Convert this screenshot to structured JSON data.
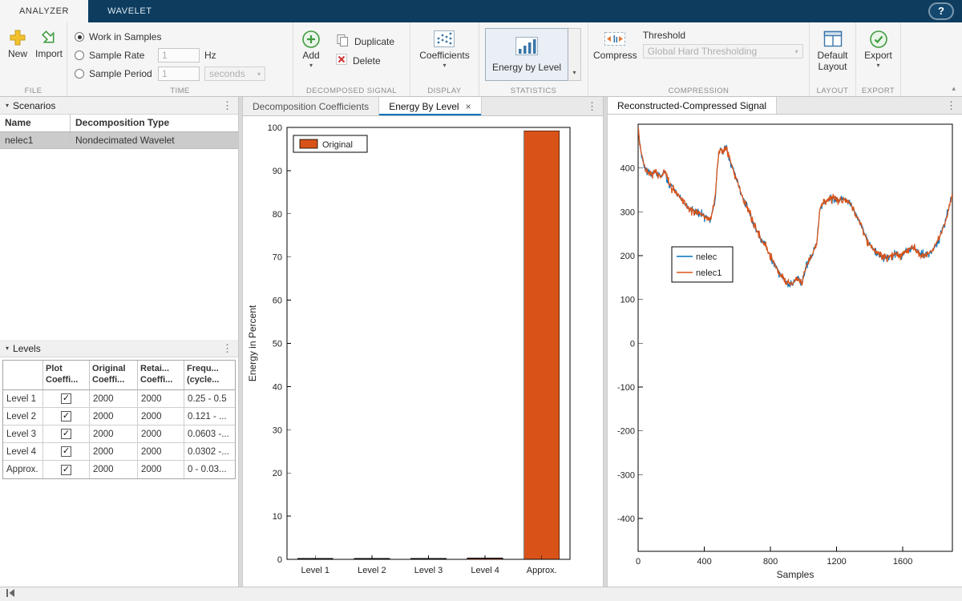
{
  "app": {
    "tabs": [
      {
        "label": "ANALYZER"
      },
      {
        "label": "WAVELET"
      }
    ],
    "help": "?"
  },
  "icons": {
    "menu": "⋮",
    "caret_down": "▾",
    "dropdown": "▾",
    "collapse": "▴",
    "check": "✓"
  },
  "toolstrip": {
    "file": {
      "label": "FILE",
      "new": "New",
      "import": "Import"
    },
    "time": {
      "label": "TIME",
      "work_in_samples": "Work in Samples",
      "sample_rate": "Sample Rate",
      "sample_rate_value": "1",
      "hz": "Hz",
      "sample_period": "Sample Period",
      "sample_period_value": "1",
      "seconds": "seconds"
    },
    "decomposed": {
      "label": "DECOMPOSED SIGNAL",
      "add": "Add",
      "duplicate": "Duplicate",
      "delete": "Delete"
    },
    "display": {
      "label": "DISPLAY",
      "coefficients": "Coefficients"
    },
    "statistics": {
      "label": "STATISTICS",
      "energy_by_level": "Energy by Level"
    },
    "compression": {
      "label": "COMPRESSION",
      "compress": "Compress",
      "threshold": "Threshold",
      "threshold_value": "Global Hard Thresholding"
    },
    "layout": {
      "label": "LAYOUT",
      "default_layout": "Default Layout"
    },
    "export": {
      "label": "EXPORT",
      "export": "Export"
    }
  },
  "scenarios": {
    "title": "Scenarios",
    "columns": [
      "Name",
      "Decomposition Type"
    ],
    "rows": [
      {
        "name": "nelec1",
        "type": "Nondecimated Wavelet",
        "selected": true
      }
    ]
  },
  "levels": {
    "title": "Levels",
    "columns": [
      "",
      "Plot\nCoeffi...",
      "Original\nCoeffi...",
      "Retai...\nCoeffi...",
      "Frequ...\n(cycle..."
    ],
    "rows": [
      {
        "label": "Level 1",
        "plot": true,
        "original": "2000",
        "retained": "2000",
        "freq": "0.25 - 0.5"
      },
      {
        "label": "Level 2",
        "plot": true,
        "original": "2000",
        "retained": "2000",
        "freq": "0.121 - ..."
      },
      {
        "label": "Level 3",
        "plot": true,
        "original": "2000",
        "retained": "2000",
        "freq": "0.0603 -..."
      },
      {
        "label": "Level 4",
        "plot": true,
        "original": "2000",
        "retained": "2000",
        "freq": "0.0302 -..."
      },
      {
        "label": "Approx.",
        "plot": true,
        "original": "2000",
        "retained": "2000",
        "freq": "0 - 0.03..."
      }
    ]
  },
  "center": {
    "tabs": [
      "Decomposition Coefficients",
      "Energy By Level"
    ],
    "active_tab": 1,
    "close": "×"
  },
  "right": {
    "title": "Reconstructed-Compressed Signal"
  },
  "colors": {
    "orange": "#d95319",
    "blue": "#0072bd",
    "accent": "#0072bd"
  },
  "chart_data": [
    {
      "type": "bar",
      "title": "Energy By Level",
      "categories": [
        "Level 1",
        "Level 2",
        "Level 3",
        "Level 4",
        "Approx."
      ],
      "values": [
        0.12,
        0.15,
        0.2,
        0.3,
        99.23
      ],
      "xlabel": "",
      "ylabel": "Energy in Percent",
      "ylim": [
        0,
        100
      ],
      "yticks": [
        0,
        10,
        20,
        30,
        40,
        50,
        60,
        70,
        80,
        90,
        100
      ],
      "bar_color": "#d95319",
      "grid": false,
      "legend": [
        {
          "label": "Original",
          "color": "#d95319"
        }
      ],
      "legend_position": "top-left"
    },
    {
      "type": "line",
      "title": "Reconstructed-Compressed Signal",
      "xlabel": "Samples",
      "ylabel": "",
      "xlim": [
        0,
        1900
      ],
      "ylim": [
        -475,
        500
      ],
      "xticks": [
        0,
        400,
        800,
        1200,
        1600
      ],
      "yticks": [
        -400,
        -300,
        -200,
        -100,
        0,
        100,
        200,
        300,
        400
      ],
      "grid": false,
      "legend_position": "left-center",
      "series": [
        {
          "name": "nelec",
          "color": "#0072bd",
          "width": 1.0
        },
        {
          "name": "nelec1",
          "color": "#d95319",
          "width": 1.3
        }
      ],
      "keypoints": {
        "x": [
          0,
          15,
          40,
          70,
          100,
          140,
          160,
          190,
          220,
          260,
          300,
          340,
          380,
          420,
          440,
          465,
          485,
          500,
          515,
          530,
          550,
          575,
          600,
          625,
          660,
          700,
          740,
          780,
          820,
          860,
          900,
          930,
          960,
          990,
          1020,
          1050,
          1080,
          1100,
          1130,
          1170,
          1210,
          1250,
          1290,
          1320,
          1350,
          1390,
          1430,
          1470,
          1510,
          1550,
          1590,
          1630,
          1660,
          1700,
          1740,
          1780,
          1820,
          1860,
          1900
        ],
        "y": [
          490,
          440,
          400,
          385,
          390,
          380,
          395,
          360,
          350,
          330,
          310,
          300,
          295,
          285,
          285,
          330,
          430,
          445,
          435,
          450,
          425,
          395,
          370,
          340,
          310,
          270,
          240,
          215,
          185,
          155,
          140,
          135,
          150,
          140,
          180,
          200,
          230,
          310,
          325,
          330,
          325,
          330,
          315,
          290,
          270,
          230,
          210,
          200,
          195,
          205,
          200,
          215,
          220,
          205,
          200,
          210,
          240,
          280,
          340
        ]
      },
      "noise_amplitude": 8
    }
  ]
}
